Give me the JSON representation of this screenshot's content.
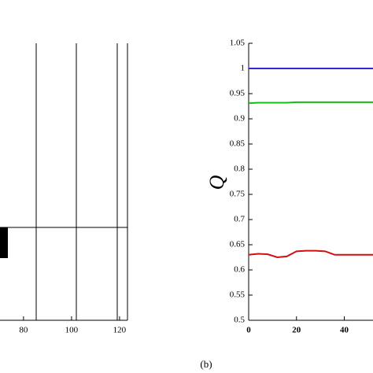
{
  "chart_data": [
    {
      "type": "line",
      "xlim": [
        70.2,
        123.3
      ],
      "xticks": [
        80,
        100,
        120
      ],
      "series": []
    },
    {
      "type": "line",
      "caption": "(b)",
      "y_label": "Q",
      "x": [
        0,
        4,
        8,
        12,
        16,
        20,
        24,
        28,
        32,
        36,
        40,
        44,
        48,
        52
      ],
      "series": [
        {
          "name": "blue",
          "color": "#2a2ad8",
          "values": [
            1,
            1,
            1,
            1,
            1,
            1,
            1,
            1,
            1,
            1,
            1,
            1,
            1,
            1
          ]
        },
        {
          "name": "green",
          "color": "#10c010",
          "values": [
            0.931,
            0.932,
            0.932,
            0.932,
            0.932,
            0.933,
            0.933,
            0.933,
            0.933,
            0.933,
            0.933,
            0.933,
            0.933,
            0.933
          ]
        },
        {
          "name": "red",
          "color": "#d01010",
          "values": [
            0.63,
            0.632,
            0.631,
            0.625,
            0.627,
            0.637,
            0.638,
            0.638,
            0.637,
            0.63,
            0.63,
            0.63,
            0.63,
            0.63
          ]
        }
      ],
      "xlim": [
        0,
        52
      ],
      "xticks": [
        0,
        20,
        40
      ],
      "ylim": [
        0.5,
        1.05
      ],
      "yticks": [
        0.5,
        0.55,
        0.6,
        0.65,
        0.7,
        0.75,
        0.8,
        0.85,
        0.9,
        0.95,
        1,
        1.05
      ]
    }
  ]
}
